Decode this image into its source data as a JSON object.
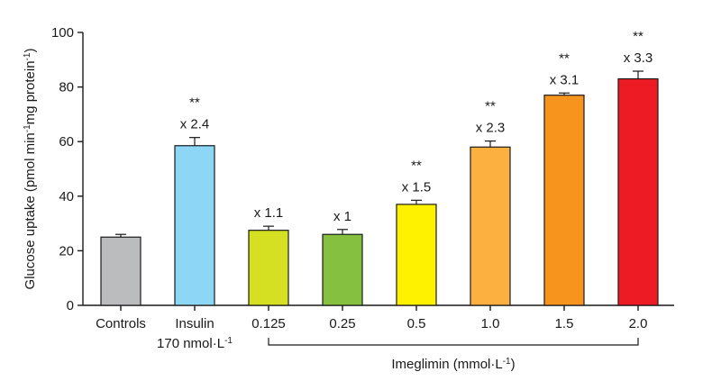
{
  "chart_data": {
    "type": "bar",
    "ylabel": {
      "parts": [
        {
          "t": "Glucose uptake (pmol min"
        },
        {
          "t": "-1",
          "sup": true
        },
        {
          "t": "mg protein"
        },
        {
          "t": "-1",
          "sup": true
        },
        {
          "t": ")"
        }
      ]
    },
    "ylim": [
      0,
      100
    ],
    "yticks": [
      0,
      20,
      40,
      60,
      80,
      100
    ],
    "grid": false,
    "bars": [
      {
        "category": "Controls",
        "sublabel": "",
        "value": 25,
        "error": 1.0,
        "color": "#bbbcbe",
        "fold": "",
        "sig": ""
      },
      {
        "category": "Insulin",
        "sublabel": "170 nmol·L-1",
        "value": 58.5,
        "error": 3.0,
        "color": "#8dd6f5",
        "fold": "x 2.4",
        "sig": "**"
      },
      {
        "category": "0.125",
        "sublabel": "",
        "value": 27.5,
        "error": 1.5,
        "color": "#d4e021",
        "fold": "x 1.1",
        "sig": ""
      },
      {
        "category": "0.25",
        "sublabel": "",
        "value": 26,
        "error": 1.8,
        "color": "#86c041",
        "fold": "x 1",
        "sig": ""
      },
      {
        "category": "0.5",
        "sublabel": "",
        "value": 37,
        "error": 1.5,
        "color": "#fff200",
        "fold": "x 1.5",
        "sig": "**"
      },
      {
        "category": "1.0",
        "sublabel": "",
        "value": 58,
        "error": 2.2,
        "color": "#fbb040",
        "fold": "x 2.3",
        "sig": "**"
      },
      {
        "category": "1.5",
        "sublabel": "",
        "value": 77,
        "error": 0.8,
        "color": "#f7941d",
        "fold": "x 3.1",
        "sig": "**"
      },
      {
        "category": "2.0",
        "sublabel": "",
        "value": 83,
        "error": 2.8,
        "color": "#ed1c24",
        "fold": "x 3.3",
        "sig": "**"
      }
    ],
    "group_label": {
      "parts": [
        {
          "t": "Imeglimin (mmol·L"
        },
        {
          "t": "-1",
          "sup": true
        },
        {
          "t": ")"
        }
      ]
    },
    "insulin_sublabel": {
      "parts": [
        {
          "t": "170 nmol·L"
        },
        {
          "t": "-1",
          "sup": true
        }
      ]
    }
  }
}
